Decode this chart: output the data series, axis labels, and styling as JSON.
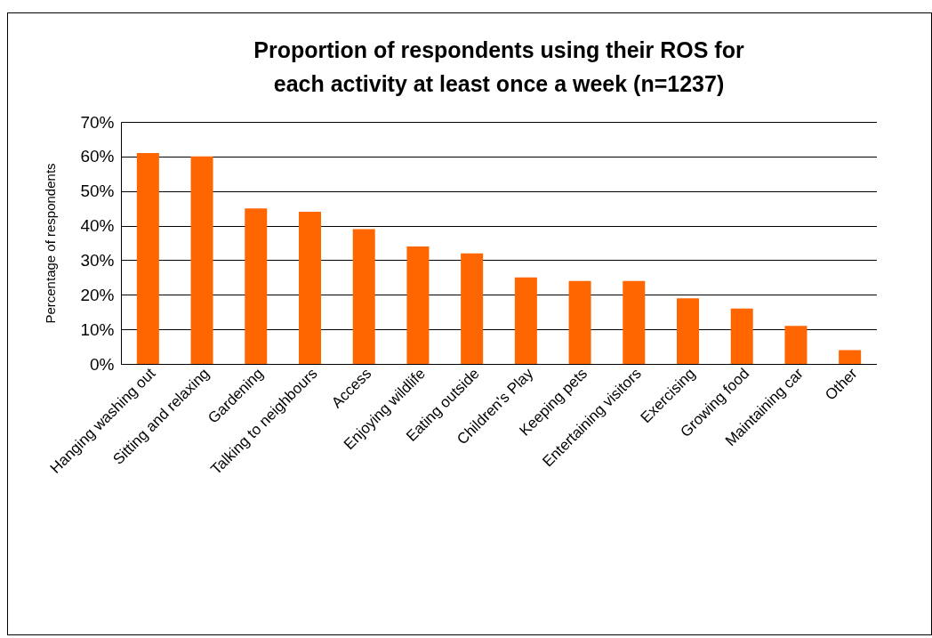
{
  "chart_data": {
    "type": "bar",
    "title": "Proportion of respondents using their ROS for each activity at least once a week (n=1237)",
    "ylabel": "Percentage of respondents",
    "categories": [
      "Hanging washing out",
      "Sitting and relaxing",
      "Gardening",
      "Talking to neighbours",
      "Access",
      "Enjoying wildlife",
      "Eating outside",
      "Children's Play",
      "Keeping pets",
      "Entertaining visitors",
      "Exercising",
      "Growing food",
      "Maintaining car",
      "Other"
    ],
    "values": [
      61,
      60,
      45,
      44,
      39,
      34,
      32,
      25,
      24,
      24,
      19,
      16,
      11,
      4
    ],
    "color": "#ff6600",
    "ylim": [
      0,
      70
    ],
    "yticks": [
      {
        "value": 0,
        "label": "0%"
      },
      {
        "value": 10,
        "label": "10%"
      },
      {
        "value": 20,
        "label": "20%"
      },
      {
        "value": 30,
        "label": "30%"
      },
      {
        "value": 40,
        "label": "40%"
      },
      {
        "value": 50,
        "label": "50%"
      },
      {
        "value": 60,
        "label": "60%"
      },
      {
        "value": 70,
        "label": "70%"
      }
    ],
    "grid": "y"
  }
}
